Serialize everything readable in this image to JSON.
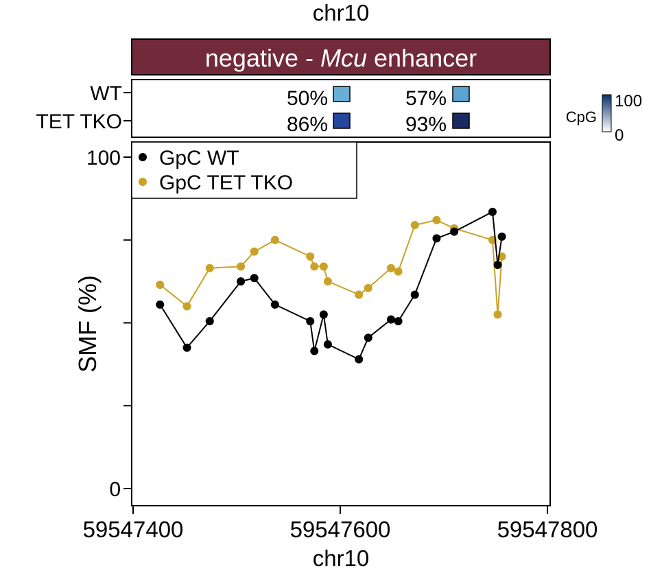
{
  "chart_data": {
    "type": "line",
    "title": "chr10",
    "region_label": {
      "prefix": "negative - ",
      "gene": "Mcu",
      "suffix": " enhancer"
    },
    "region_color": "#722a3b",
    "xlabel": "chr10",
    "ylabel": "SMF  (%)",
    "xlim": [
      59547400,
      59547800
    ],
    "ylim": [
      0,
      100
    ],
    "xticks": [
      59547400,
      59547600,
      59547800
    ],
    "xtick_labels": [
      "59547400",
      "59547600",
      "59547800"
    ],
    "yticks": [
      0,
      25,
      50,
      75,
      100
    ],
    "ytick_labels": [
      "0",
      "",
      "",
      "",
      "100"
    ],
    "legend_position": "top-left",
    "series": [
      {
        "name": "GpC WT",
        "color": "#000000",
        "x": [
          59547426,
          59547452,
          59547474,
          59547504,
          59547517,
          59547537,
          59547571,
          59547575,
          59547584,
          59547588,
          59547618,
          59547627,
          59547649,
          59547656,
          59547672,
          59547693,
          59547710,
          59547747,
          59547752,
          59547756
        ],
        "y": [
          55.5,
          42.5,
          50.5,
          62.5,
          63.5,
          55.5,
          50.5,
          41.5,
          52.5,
          43.5,
          39,
          45.5,
          51,
          50.5,
          58.5,
          75.5,
          77.5,
          83.5,
          67.5,
          76
        ]
      },
      {
        "name": "GpC TET TKO",
        "color": "#c9a227",
        "x": [
          59547426,
          59547452,
          59547474,
          59547504,
          59547517,
          59547537,
          59547571,
          59547575,
          59547584,
          59547588,
          59547618,
          59547627,
          59547649,
          59547656,
          59547672,
          59547693,
          59547710,
          59547747,
          59547752,
          59547756
        ],
        "y": [
          61.5,
          55,
          66.5,
          67,
          71.5,
          75,
          70,
          67,
          67,
          62.5,
          58.5,
          60.5,
          66.5,
          65.5,
          79.5,
          81,
          78.5,
          75,
          52.5,
          70
        ]
      }
    ],
    "cpg_rows": [
      "WT",
      "TET TKO"
    ],
    "cpg_cells": [
      {
        "row": "WT",
        "value_label": "50%",
        "value": 50,
        "color": "#6aaed6"
      },
      {
        "row": "WT",
        "value_label": "57%",
        "value": 57,
        "color": "#5ba3d0"
      },
      {
        "row": "TET TKO",
        "value_label": "86%",
        "value": 86,
        "color": "#25459d"
      },
      {
        "row": "TET TKO",
        "value_label": "93%",
        "value": 93,
        "color": "#1c2a63"
      }
    ],
    "colorbar": {
      "label": "CpG",
      "min_label": "0",
      "max_label": "100",
      "color_low": "#ffffff",
      "color_high": "#08306b"
    }
  }
}
